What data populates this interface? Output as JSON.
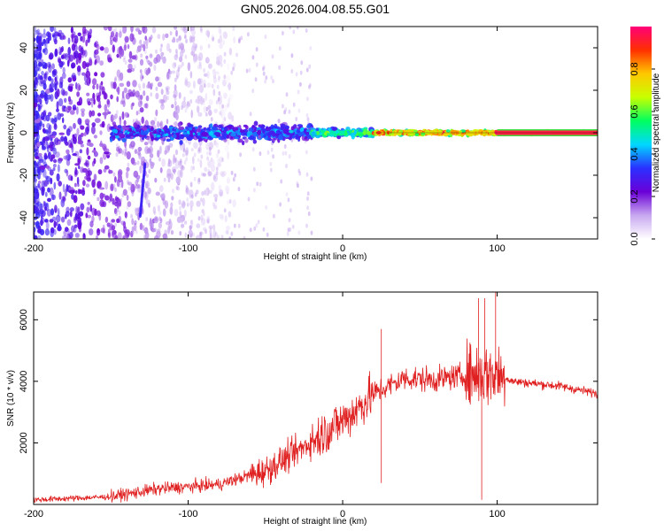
{
  "title": "GN05.2026.004.08.55.G01",
  "chart_data": [
    {
      "type": "heatmap",
      "name": "spectrogram",
      "xlabel": "Height of straight line (km)",
      "ylabel": "Frequency (Hz)",
      "xlim": [
        -200,
        165
      ],
      "ylim": [
        -50,
        50
      ],
      "x_ticks": [
        -200,
        -100,
        0,
        100
      ],
      "y_ticks": [
        -40,
        -20,
        0,
        20,
        40
      ],
      "colorbar": {
        "label": "Normalized spectral amplitude",
        "range": [
          0,
          1
        ],
        "ticks": [
          "0.0",
          "0.2",
          "0.4",
          "0.6",
          "0.8"
        ],
        "colormap": [
          "#ffffff",
          "#c8a8f0",
          "#6a00d8",
          "#2a30ff",
          "#00d8ff",
          "#00ff60",
          "#c8ff00",
          "#ffc800",
          "#ff3000",
          "#ff0078"
        ]
      },
      "dominant_frequency_hz": 0,
      "segments": [
        {
          "x_range": [
            -200,
            -150
          ],
          "description_values": {
            "spread_hz": 50,
            "amplitude": 0.15
          }
        },
        {
          "x_range": [
            -150,
            -20
          ],
          "description_values": {
            "spread_hz": 6,
            "amplitude": 0.35
          }
        },
        {
          "x_range": [
            -20,
            20
          ],
          "description_values": {
            "spread_hz": 3,
            "amplitude": 0.55
          }
        },
        {
          "x_range": [
            20,
            100
          ],
          "description_values": {
            "spread_hz": 1.5,
            "amplitude": 0.85
          }
        },
        {
          "x_range": [
            100,
            165
          ],
          "description_values": {
            "spread_hz": 1,
            "amplitude": 1.0
          }
        }
      ]
    },
    {
      "type": "line",
      "name": "snr",
      "xlabel": "Height of straight line (km)",
      "ylabel": "SNR (10 * v/v)",
      "xlim": [
        -200,
        165
      ],
      "ylim": [
        0,
        6900
      ],
      "x_ticks": [
        -200,
        -100,
        0,
        100
      ],
      "y_ticks": [
        2000,
        4000,
        6000
      ],
      "color": "#e02020",
      "trend": [
        {
          "x": -200,
          "y": 150
        },
        {
          "x": -150,
          "y": 250
        },
        {
          "x": -120,
          "y": 500
        },
        {
          "x": -80,
          "y": 650
        },
        {
          "x": -50,
          "y": 1100
        },
        {
          "x": -30,
          "y": 1700
        },
        {
          "x": -10,
          "y": 2400
        },
        {
          "x": 5,
          "y": 2900
        },
        {
          "x": 20,
          "y": 3600
        },
        {
          "x": 40,
          "y": 4100
        },
        {
          "x": 60,
          "y": 4050
        },
        {
          "x": 80,
          "y": 4200
        },
        {
          "x": 100,
          "y": 4250
        },
        {
          "x": 110,
          "y": 4000
        },
        {
          "x": 140,
          "y": 3850
        },
        {
          "x": 165,
          "y": 3600
        }
      ],
      "spikes": [
        {
          "x": 25,
          "y": 5700
        },
        {
          "x": 88,
          "y": 6700
        },
        {
          "x": 92,
          "y": 6700
        },
        {
          "x": 99,
          "y": 6900
        },
        {
          "x": 90,
          "y": 150
        },
        {
          "x": 25,
          "y": 700
        }
      ]
    }
  ]
}
